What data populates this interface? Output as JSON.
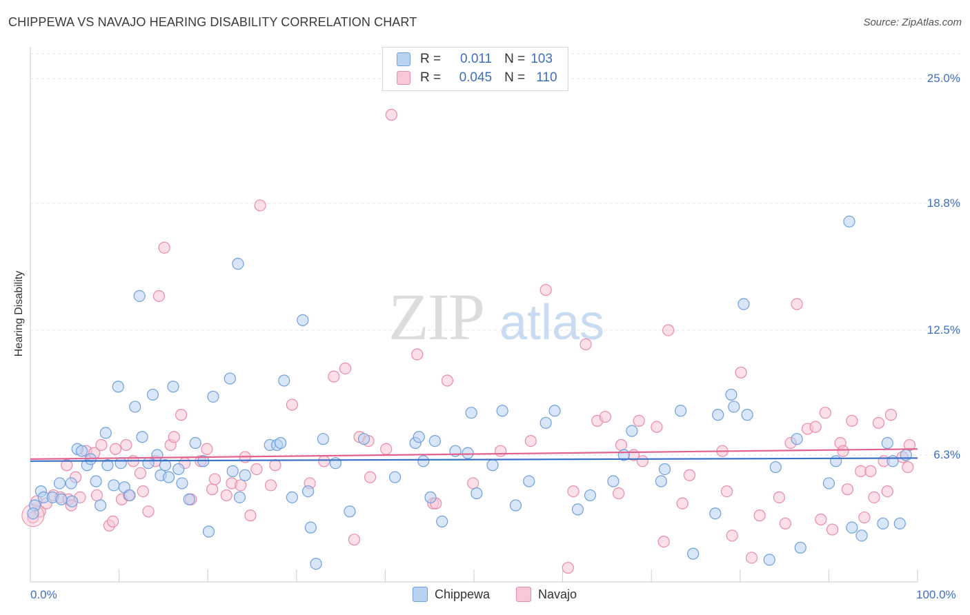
{
  "header": {
    "title": "CHIPPEWA VS NAVAJO HEARING DISABILITY CORRELATION CHART",
    "source": "Source: ZipAtlas.com"
  },
  "watermark": {
    "zip": "ZIP",
    "atlas": "atlas"
  },
  "legend_top": {
    "rows": [
      {
        "r_key": "R =",
        "r_val": "0.011",
        "n_key": "N =",
        "n_val": "103"
      },
      {
        "r_key": "R =",
        "r_val": "0.045",
        "n_key": "N =",
        "n_val": "110"
      }
    ]
  },
  "legend_bottom": {
    "items": [
      "Chippewa",
      "Navajo"
    ]
  },
  "colors": {
    "blue_fill": "#b8d2f2",
    "blue_stroke": "#6f9fdc",
    "blue_line": "#3b72c8",
    "pink_fill": "#f7c7d6",
    "pink_stroke": "#e98aa8",
    "pink_line": "#e2628d",
    "grid": "#e0e0e0",
    "axis_text": "#3d6fbe"
  },
  "chart_data": {
    "type": "scatter",
    "title": "CHIPPEWA VS NAVAJO HEARING DISABILITY CORRELATION CHART",
    "xlabel": "",
    "ylabel": "Hearing Disability",
    "xlim": [
      0,
      100
    ],
    "ylim": [
      0,
      26.3
    ],
    "x_tick_labels": [
      "0.0%",
      "100.0%"
    ],
    "y_ticks": [
      6.3,
      12.5,
      18.8,
      25.0
    ],
    "y_tick_labels": [
      "6.3%",
      "12.5%",
      "18.8%",
      "25.0%"
    ],
    "grid": "horizontal dashed",
    "legend_placement": "bottom-center",
    "series": [
      {
        "name": "Chippewa",
        "R": 0.011,
        "N": 103,
        "trend": {
          "y_at_x0": 6.0,
          "y_at_x100": 6.15
        },
        "points": [
          [
            0.5,
            3.8
          ],
          [
            1.2,
            4.5
          ],
          [
            1.5,
            4.2
          ],
          [
            2.5,
            4.2
          ],
          [
            3.3,
            4.9
          ],
          [
            3.5,
            4.1
          ],
          [
            4.6,
            4.9
          ],
          [
            4.7,
            4.0
          ],
          [
            5.3,
            6.6
          ],
          [
            5.8,
            6.5
          ],
          [
            6.4,
            5.8
          ],
          [
            6.8,
            6.1
          ],
          [
            7.4,
            5.0
          ],
          [
            7.9,
            3.8
          ],
          [
            8.5,
            7.4
          ],
          [
            8.7,
            5.8
          ],
          [
            9.4,
            4.8
          ],
          [
            9.9,
            9.7
          ],
          [
            10.2,
            5.9
          ],
          [
            10.6,
            4.7
          ],
          [
            11.2,
            4.3
          ],
          [
            11.8,
            8.7
          ],
          [
            12.3,
            14.2
          ],
          [
            12.6,
            7.2
          ],
          [
            13.3,
            5.9
          ],
          [
            13.8,
            9.3
          ],
          [
            14.3,
            6.3
          ],
          [
            14.7,
            5.3
          ],
          [
            15.2,
            5.8
          ],
          [
            15.6,
            5.2
          ],
          [
            16.1,
            9.7
          ],
          [
            16.7,
            5.6
          ],
          [
            17.1,
            4.9
          ],
          [
            17.9,
            4.1
          ],
          [
            18.6,
            6.9
          ],
          [
            19.5,
            6.0
          ],
          [
            20.1,
            2.5
          ],
          [
            20.6,
            9.2
          ],
          [
            22.5,
            10.1
          ],
          [
            22.8,
            5.5
          ],
          [
            23.4,
            15.8
          ],
          [
            23.6,
            4.2
          ],
          [
            24.2,
            5.3
          ],
          [
            27.0,
            6.8
          ],
          [
            27.8,
            6.8
          ],
          [
            28.2,
            6.9
          ],
          [
            28.6,
            10.0
          ],
          [
            29.5,
            4.2
          ],
          [
            30.7,
            13.0
          ],
          [
            31.3,
            4.5
          ],
          [
            31.6,
            2.7
          ],
          [
            32.2,
            0.9
          ],
          [
            33.0,
            7.1
          ],
          [
            34.4,
            5.9
          ],
          [
            36.0,
            3.5
          ],
          [
            37.6,
            7.1
          ],
          [
            41.1,
            5.2
          ],
          [
            43.4,
            6.9
          ],
          [
            43.8,
            7.2
          ],
          [
            44.3,
            6.0
          ],
          [
            45.1,
            4.2
          ],
          [
            45.6,
            7.0
          ],
          [
            46.4,
            3.0
          ],
          [
            47.9,
            6.5
          ],
          [
            49.3,
            6.4
          ],
          [
            49.7,
            8.4
          ],
          [
            50.3,
            4.4
          ],
          [
            52.1,
            5.8
          ],
          [
            53.2,
            8.5
          ],
          [
            54.7,
            3.8
          ],
          [
            56.2,
            5.0
          ],
          [
            58.1,
            7.9
          ],
          [
            59.1,
            8.5
          ],
          [
            61.7,
            3.6
          ],
          [
            63.1,
            4.3
          ],
          [
            65.7,
            5.0
          ],
          [
            66.9,
            6.3
          ],
          [
            67.8,
            7.5
          ],
          [
            71.1,
            5.0
          ],
          [
            71.5,
            5.6
          ],
          [
            73.3,
            8.5
          ],
          [
            74.7,
            1.4
          ],
          [
            77.2,
            3.4
          ],
          [
            77.5,
            8.3
          ],
          [
            79.0,
            9.3
          ],
          [
            79.3,
            8.7
          ],
          [
            80.4,
            13.8
          ],
          [
            80.8,
            8.3
          ],
          [
            83.3,
            1.1
          ],
          [
            84.0,
            5.7
          ],
          [
            86.4,
            7.1
          ],
          [
            86.8,
            1.7
          ],
          [
            90.0,
            4.9
          ],
          [
            90.8,
            6.0
          ],
          [
            92.3,
            17.9
          ],
          [
            92.6,
            2.7
          ],
          [
            93.7,
            2.3
          ],
          [
            96.1,
            2.9
          ],
          [
            96.6,
            6.9
          ],
          [
            97.2,
            6.0
          ],
          [
            98.0,
            2.9
          ],
          [
            98.7,
            6.3
          ],
          [
            0.3,
            3.4
          ]
        ]
      },
      {
        "name": "Navajo",
        "R": 0.045,
        "N": 110,
        "trend": {
          "y_at_x0": 6.1,
          "y_at_x100": 6.6
        },
        "points": [
          [
            0.3,
            3.2
          ],
          [
            0.7,
            4.0
          ],
          [
            1.1,
            3.5
          ],
          [
            1.8,
            3.9
          ],
          [
            2.6,
            4.3
          ],
          [
            3.4,
            4.2
          ],
          [
            4.1,
            5.8
          ],
          [
            4.3,
            4.1
          ],
          [
            4.6,
            3.8
          ],
          [
            5.1,
            5.2
          ],
          [
            5.6,
            4.2
          ],
          [
            6.3,
            6.5
          ],
          [
            7.2,
            6.4
          ],
          [
            7.5,
            4.3
          ],
          [
            8.0,
            6.8
          ],
          [
            8.9,
            2.8
          ],
          [
            9.3,
            3.0
          ],
          [
            9.6,
            6.6
          ],
          [
            10.3,
            4.1
          ],
          [
            10.8,
            6.8
          ],
          [
            11.1,
            4.3
          ],
          [
            11.6,
            6.0
          ],
          [
            12.4,
            5.4
          ],
          [
            12.7,
            4.5
          ],
          [
            13.3,
            3.5
          ],
          [
            14.1,
            6.0
          ],
          [
            14.5,
            14.2
          ],
          [
            15.1,
            16.6
          ],
          [
            15.8,
            6.8
          ],
          [
            16.2,
            7.2
          ],
          [
            17.0,
            8.3
          ],
          [
            17.4,
            5.9
          ],
          [
            18.1,
            4.1
          ],
          [
            19.2,
            6.0
          ],
          [
            19.9,
            6.6
          ],
          [
            20.5,
            4.6
          ],
          [
            20.8,
            5.1
          ],
          [
            22.1,
            4.3
          ],
          [
            22.7,
            4.9
          ],
          [
            23.7,
            4.8
          ],
          [
            24.2,
            6.2
          ],
          [
            24.8,
            3.3
          ],
          [
            25.5,
            5.6
          ],
          [
            25.9,
            18.7
          ],
          [
            27.1,
            4.8
          ],
          [
            27.6,
            5.8
          ],
          [
            29.5,
            8.8
          ],
          [
            31.5,
            4.9
          ],
          [
            33.1,
            6.0
          ],
          [
            34.2,
            10.2
          ],
          [
            35.5,
            10.6
          ],
          [
            36.5,
            2.1
          ],
          [
            37.1,
            7.2
          ],
          [
            38.1,
            7.0
          ],
          [
            38.3,
            5.2
          ],
          [
            40.1,
            6.6
          ],
          [
            40.7,
            23.2
          ],
          [
            43.6,
            11.3
          ],
          [
            45.4,
            3.9
          ],
          [
            45.7,
            3.9
          ],
          [
            47.0,
            10.0
          ],
          [
            49.9,
            4.9
          ],
          [
            53.0,
            6.5
          ],
          [
            56.4,
            7.0
          ],
          [
            58.1,
            14.5
          ],
          [
            60.6,
            0.7
          ],
          [
            61.2,
            4.5
          ],
          [
            62.6,
            11.8
          ],
          [
            63.9,
            8.0
          ],
          [
            64.8,
            8.2
          ],
          [
            66.3,
            4.4
          ],
          [
            66.6,
            6.8
          ],
          [
            68.0,
            6.3
          ],
          [
            68.6,
            8.0
          ],
          [
            69.0,
            6.0
          ],
          [
            70.6,
            7.7
          ],
          [
            71.4,
            2.0
          ],
          [
            71.9,
            12.5
          ],
          [
            73.5,
            3.9
          ],
          [
            74.3,
            5.3
          ],
          [
            78.0,
            6.5
          ],
          [
            78.5,
            4.5
          ],
          [
            79.1,
            2.3
          ],
          [
            80.1,
            10.4
          ],
          [
            81.3,
            1.2
          ],
          [
            82.2,
            3.3
          ],
          [
            84.4,
            4.2
          ],
          [
            85.1,
            2.9
          ],
          [
            85.7,
            6.9
          ],
          [
            86.4,
            13.8
          ],
          [
            87.6,
            7.6
          ],
          [
            88.5,
            7.7
          ],
          [
            89.1,
            3.1
          ],
          [
            89.6,
            8.4
          ],
          [
            90.4,
            2.6
          ],
          [
            91.3,
            6.9
          ],
          [
            91.6,
            6.5
          ],
          [
            92.1,
            4.6
          ],
          [
            92.6,
            8.0
          ],
          [
            93.6,
            5.5
          ],
          [
            94.0,
            3.2
          ],
          [
            94.7,
            5.5
          ],
          [
            95.1,
            4.2
          ],
          [
            95.6,
            7.9
          ],
          [
            96.2,
            6.0
          ],
          [
            96.6,
            4.5
          ],
          [
            97.0,
            8.3
          ],
          [
            98.3,
            6.2
          ],
          [
            99.1,
            6.8
          ],
          [
            98.9,
            5.7
          ]
        ]
      }
    ]
  }
}
